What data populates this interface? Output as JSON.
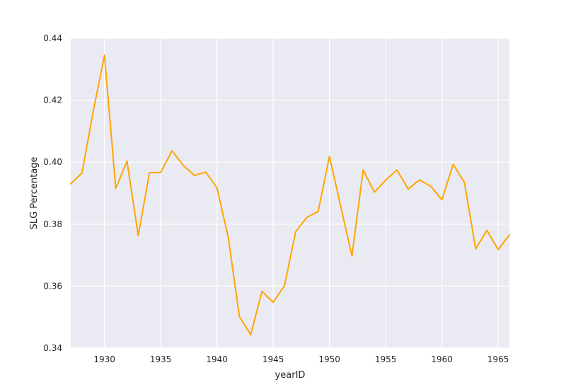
{
  "chart_data": {
    "type": "line",
    "title": "",
    "xlabel": "yearID",
    "ylabel": "SLG Percentage",
    "xlim": [
      1927,
      1966
    ],
    "ylim": [
      0.34,
      0.44
    ],
    "xticks": [
      1930,
      1935,
      1940,
      1945,
      1950,
      1955,
      1960,
      1965
    ],
    "yticks": [
      0.34,
      0.36,
      0.38,
      0.4,
      0.42,
      0.44
    ],
    "ytick_labels": [
      "0.34",
      "0.36",
      "0.38",
      "0.40",
      "0.42",
      "0.44"
    ],
    "grid": true,
    "legend": "none",
    "colors": {
      "line": "#FFA500",
      "plot_background": "#EAEAF2",
      "grid": "#FFFFFF"
    },
    "series": [
      {
        "x": [
          1927,
          1928,
          1929,
          1930,
          1931,
          1932,
          1933,
          1934,
          1935,
          1936,
          1937,
          1938,
          1939,
          1940,
          1941,
          1942,
          1943,
          1944,
          1945,
          1946,
          1947,
          1948,
          1949,
          1950,
          1951,
          1952,
          1953,
          1954,
          1955,
          1956,
          1957,
          1958,
          1959,
          1960,
          1961,
          1962,
          1963,
          1964,
          1965,
          1966
        ],
        "values": [
          0.393,
          0.3965,
          0.4165,
          0.4345,
          0.3915,
          0.4003,
          0.3763,
          0.3966,
          0.3967,
          0.4037,
          0.399,
          0.3957,
          0.3968,
          0.3917,
          0.3758,
          0.3501,
          0.3443,
          0.3583,
          0.3548,
          0.3601,
          0.3776,
          0.3822,
          0.3841,
          0.4019,
          0.3858,
          0.3697,
          0.3975,
          0.3903,
          0.3942,
          0.3975,
          0.3913,
          0.3943,
          0.3922,
          0.3879,
          0.3993,
          0.3935,
          0.372,
          0.378,
          0.3718,
          0.3765
        ]
      }
    ]
  }
}
